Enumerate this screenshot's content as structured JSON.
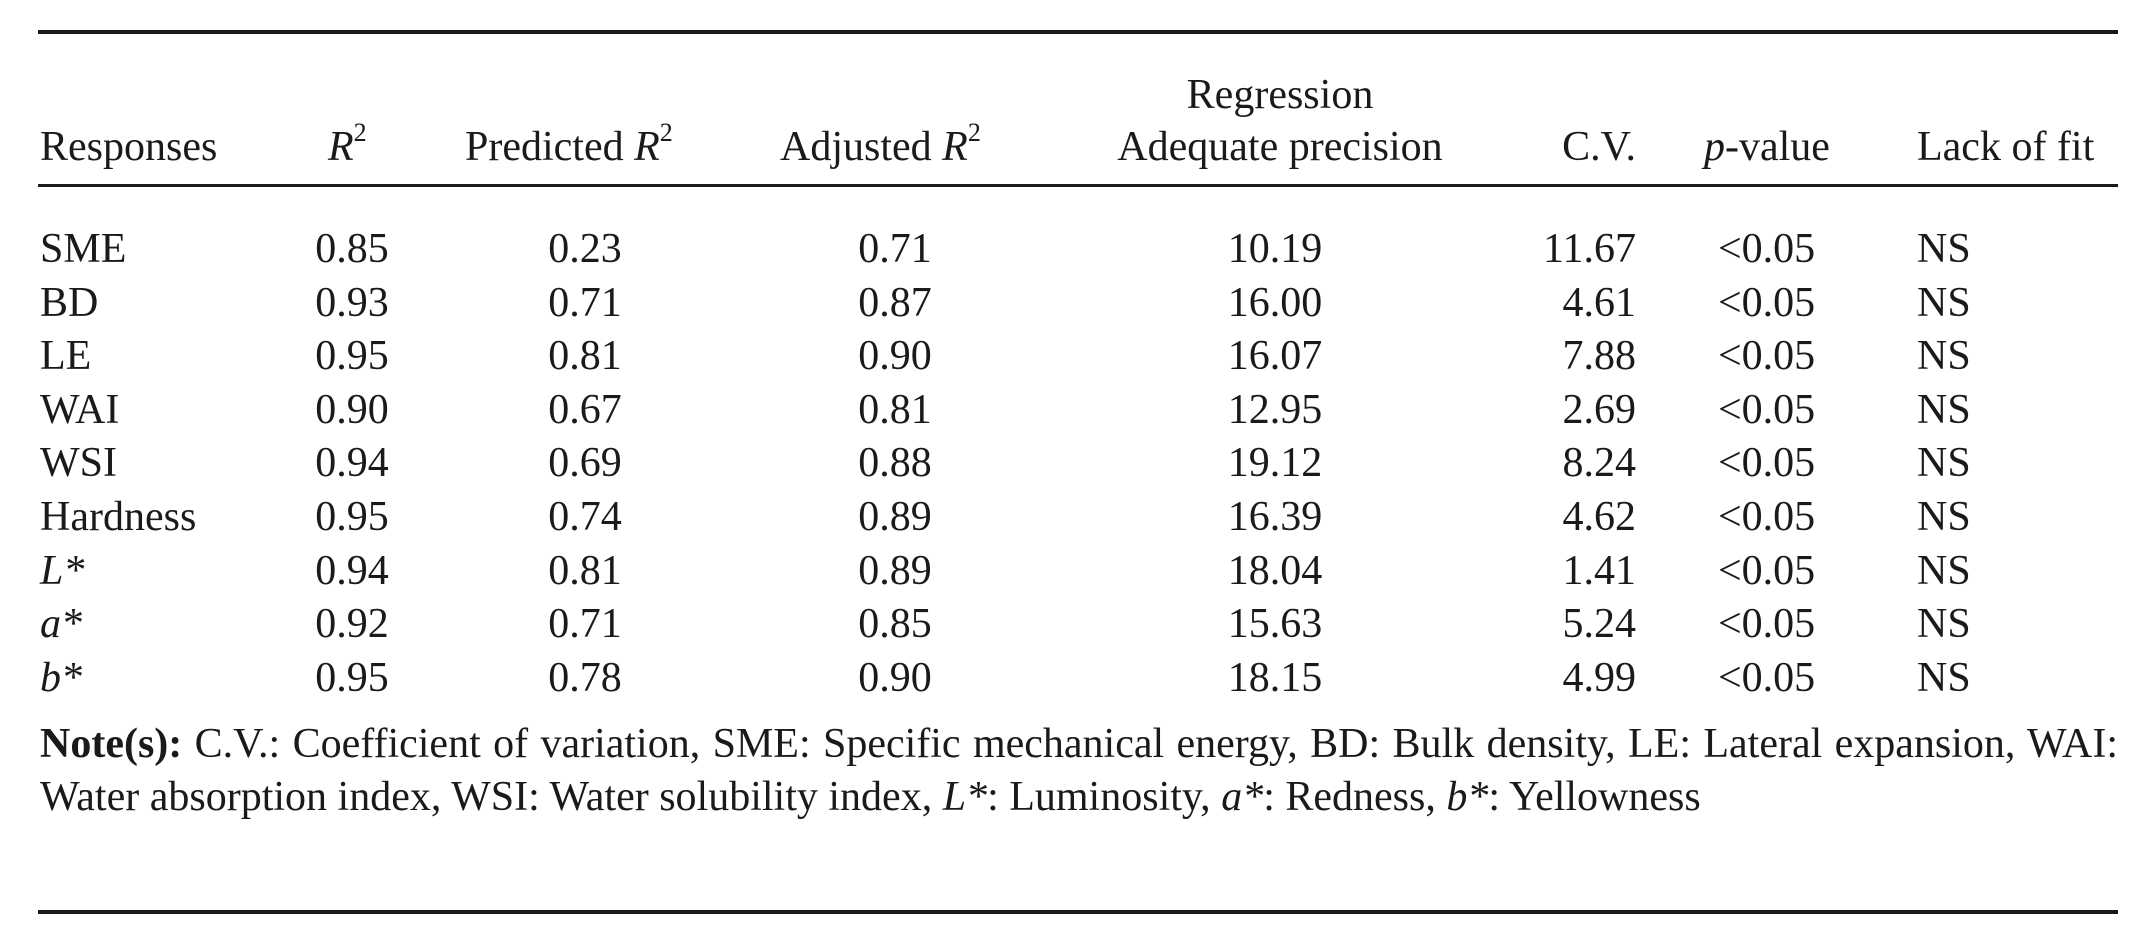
{
  "table": {
    "headers": {
      "responses": "Responses",
      "r2_symbol": "R",
      "r2_sup": "2",
      "predicted_text": "Predicted ",
      "predicted_symbol": "R",
      "predicted_sup": "2",
      "adjusted_text": "Adjusted ",
      "adjusted_symbol": "R",
      "adjusted_sup": "2",
      "regression_line1": "Regression",
      "regression_line2": "Adequate precision",
      "cv": "C.V.",
      "p_symbol": "p",
      "p_text": "-value",
      "lack_of_fit": "Lack of fit"
    },
    "rows": [
      {
        "response": "SME",
        "italic": false,
        "r2": "0.85",
        "predicted": "0.23",
        "adjusted": "0.71",
        "precision": "10.19",
        "cv": "11.67",
        "p": "<0.05",
        "lof": "NS"
      },
      {
        "response": "BD",
        "italic": false,
        "r2": "0.93",
        "predicted": "0.71",
        "adjusted": "0.87",
        "precision": "16.00",
        "cv": "4.61",
        "p": "<0.05",
        "lof": "NS"
      },
      {
        "response": "LE",
        "italic": false,
        "r2": "0.95",
        "predicted": "0.81",
        "adjusted": "0.90",
        "precision": "16.07",
        "cv": "7.88",
        "p": "<0.05",
        "lof": "NS"
      },
      {
        "response": "WAI",
        "italic": false,
        "r2": "0.90",
        "predicted": "0.67",
        "adjusted": "0.81",
        "precision": "12.95",
        "cv": "2.69",
        "p": "<0.05",
        "lof": "NS"
      },
      {
        "response": "WSI",
        "italic": false,
        "r2": "0.94",
        "predicted": "0.69",
        "adjusted": "0.88",
        "precision": "19.12",
        "cv": "8.24",
        "p": "<0.05",
        "lof": "NS"
      },
      {
        "response": "Hardness",
        "italic": false,
        "r2": "0.95",
        "predicted": "0.74",
        "adjusted": "0.89",
        "precision": "16.39",
        "cv": "4.62",
        "p": "<0.05",
        "lof": "NS"
      },
      {
        "response": "L*",
        "italic": true,
        "r2": "0.94",
        "predicted": "0.81",
        "adjusted": "0.89",
        "precision": "18.04",
        "cv": "1.41",
        "p": "<0.05",
        "lof": "NS"
      },
      {
        "response": "a*",
        "italic": true,
        "r2": "0.92",
        "predicted": "0.71",
        "adjusted": "0.85",
        "precision": "15.63",
        "cv": "5.24",
        "p": "<0.05",
        "lof": "NS"
      },
      {
        "response": "b*",
        "italic": true,
        "r2": "0.95",
        "predicted": "0.78",
        "adjusted": "0.90",
        "precision": "18.15",
        "cv": "4.99",
        "p": "<0.05",
        "lof": "NS"
      }
    ]
  },
  "note": {
    "label": "Note(s):",
    "part1": " C.V.: Coefficient of variation, SME: Specific mechanical energy, BD: Bulk density, LE: Lateral expansion, WAI: Water absorption index, WSI: Water solubility index, ",
    "l_star": "L*",
    "part2": ": Luminosity, ",
    "a_star": "a*",
    "part3": ": Redness, ",
    "b_star": "b*",
    "part4": ": Yellowness"
  }
}
